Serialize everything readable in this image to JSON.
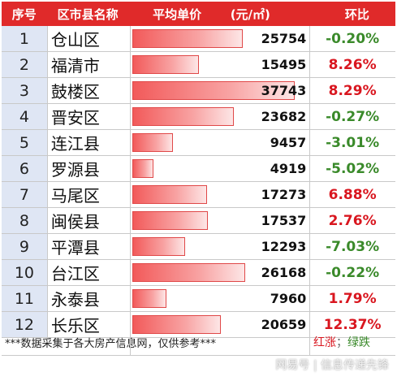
{
  "header": {
    "index": "序号",
    "name": "区市县名称",
    "price": "平均单价",
    "unit": "(元/㎡)",
    "change": "环比"
  },
  "max_price": 37743,
  "rows": [
    {
      "index": "1",
      "name": "仓山区",
      "price": 25754,
      "price_text": "25754",
      "change": "-0.20%",
      "dir": "down"
    },
    {
      "index": "2",
      "name": "福清市",
      "price": 15495,
      "price_text": "15495",
      "change": "8.26%",
      "dir": "up"
    },
    {
      "index": "3",
      "name": "鼓楼区",
      "price": 37743,
      "price_text": "37743",
      "change": "8.29%",
      "dir": "up"
    },
    {
      "index": "4",
      "name": "晋安区",
      "price": 23682,
      "price_text": "23682",
      "change": "-0.27%",
      "dir": "down"
    },
    {
      "index": "5",
      "name": "连江县",
      "price": 9457,
      "price_text": "9457",
      "change": "-3.01%",
      "dir": "down"
    },
    {
      "index": "6",
      "name": "罗源县",
      "price": 4919,
      "price_text": "4919",
      "change": "-5.02%",
      "dir": "down"
    },
    {
      "index": "7",
      "name": "马尾区",
      "price": 17273,
      "price_text": "17273",
      "change": "6.88%",
      "dir": "up"
    },
    {
      "index": "8",
      "name": "闽侯县",
      "price": 17537,
      "price_text": "17537",
      "change": "2.76%",
      "dir": "up"
    },
    {
      "index": "9",
      "name": "平潭县",
      "price": 12293,
      "price_text": "12293",
      "change": "-7.03%",
      "dir": "down"
    },
    {
      "index": "10",
      "name": "台江区",
      "price": 26168,
      "price_text": "26168",
      "change": "-0.22%",
      "dir": "down"
    },
    {
      "index": "11",
      "name": "永泰县",
      "price": 7960,
      "price_text": "7960",
      "change": "1.79%",
      "dir": "up"
    },
    {
      "index": "12",
      "name": "长乐区",
      "price": 20659,
      "price_text": "20659",
      "change": "12.37%",
      "dir": "up"
    }
  ],
  "footer": {
    "note": "***数据采集于各大房产信息网，仅供参考***",
    "legend_up": "红涨",
    "legend_sep": "；",
    "legend_down": "绿跌"
  },
  "watermark": "网易号 | 信息传递先锋",
  "colors": {
    "header_bg": "#e02a2a",
    "index_bg": "#dfe6f4",
    "up": "#d9161f",
    "down": "#3a8a2a"
  }
}
